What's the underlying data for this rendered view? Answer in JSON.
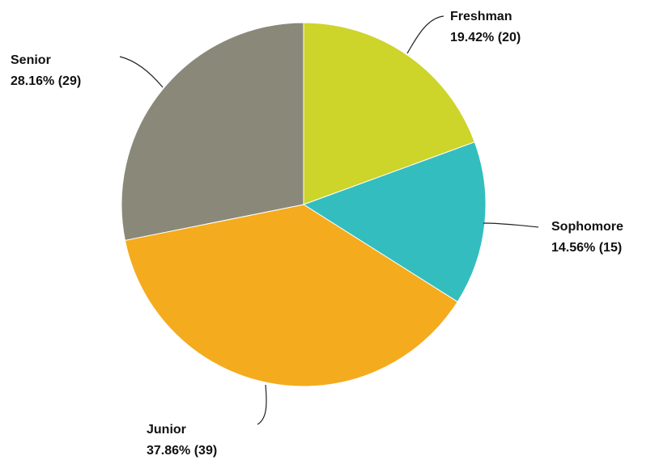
{
  "chart_data": {
    "type": "pie",
    "start_angle_deg": 0,
    "direction": "clockwise",
    "legend": "none",
    "slices": [
      {
        "name": "Freshman",
        "value": 20,
        "percent_label": "19.42% (20)",
        "color": "#cdd42a"
      },
      {
        "name": "Sophomore",
        "value": 15,
        "percent_label": "14.56% (15)",
        "color": "#33bdbf"
      },
      {
        "name": "Junior",
        "value": 39,
        "percent_label": "37.86% (39)",
        "color": "#f5ab1e"
      },
      {
        "name": "Senior",
        "value": 29,
        "percent_label": "28.16% (29)",
        "color": "#8a8979"
      }
    ]
  }
}
